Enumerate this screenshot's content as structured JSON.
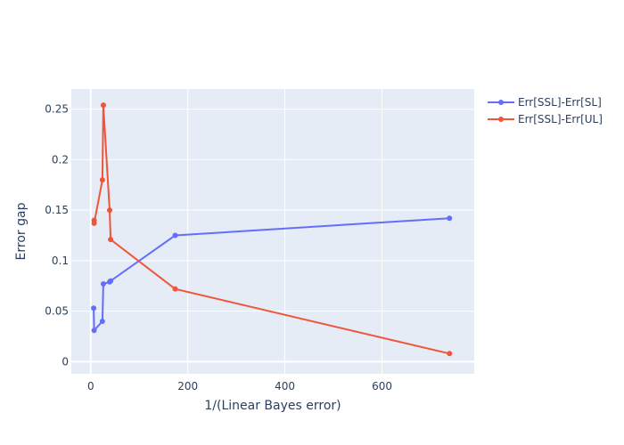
{
  "chart_data": {
    "type": "line",
    "title": "",
    "xlabel": "1/(Linear Bayes error)",
    "ylabel": "Error gap",
    "xlim": [
      -40,
      790
    ],
    "ylim": [
      -0.012,
      0.27
    ],
    "x_ticks": [
      0,
      200,
      400,
      600
    ],
    "y_ticks": [
      0,
      0.05,
      0.1,
      0.15,
      0.2,
      0.25
    ],
    "y_tick_labels": [
      "0",
      "0.05",
      "0.1",
      "0.15",
      "0.2",
      "0.25"
    ],
    "grid": true,
    "legend_position": "top-right",
    "series": [
      {
        "name": "Err[SSL]-Err[SL]",
        "color": "#636efa",
        "x": [
          6,
          7,
          24,
          26,
          39,
          41,
          174,
          739
        ],
        "y": [
          0.053,
          0.031,
          0.04,
          0.077,
          0.079,
          0.08,
          0.125,
          0.142
        ]
      },
      {
        "name": "Err[SSL]-Err[UL]",
        "color": "#ef553b",
        "x": [
          7,
          7,
          24,
          26,
          39,
          41,
          174,
          739
        ],
        "y": [
          0.14,
          0.137,
          0.18,
          0.254,
          0.15,
          0.121,
          0.072,
          0.008
        ]
      }
    ]
  }
}
